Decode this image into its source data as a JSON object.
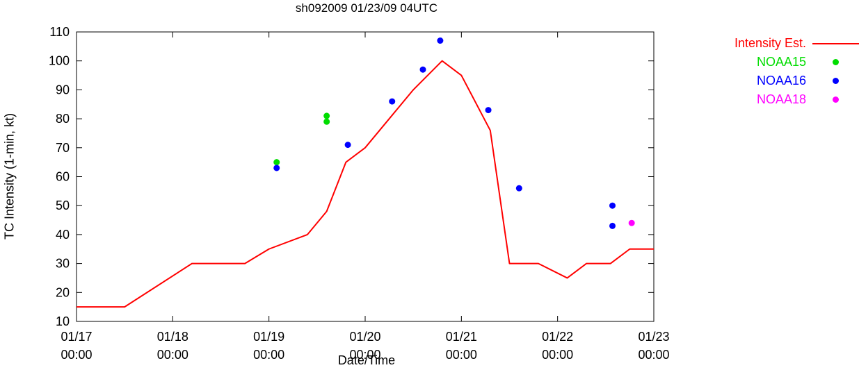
{
  "chart_data": {
    "type": "line",
    "title": "sh092009 01/23/09 04UTC",
    "xlabel": "Date/Time",
    "ylabel": "TC Intensity (1-min, kt)",
    "ylim": [
      10,
      110
    ],
    "xlim_days": [
      0,
      6
    ],
    "y_ticks": [
      10,
      20,
      30,
      40,
      50,
      60,
      70,
      80,
      90,
      100,
      110
    ],
    "x_ticks": [
      {
        "day": 0,
        "date": "01/17",
        "time": "00:00"
      },
      {
        "day": 1,
        "date": "01/18",
        "time": "00:00"
      },
      {
        "day": 2,
        "date": "01/19",
        "time": "00:00"
      },
      {
        "day": 3,
        "date": "01/20",
        "time": "00:00"
      },
      {
        "day": 4,
        "date": "01/21",
        "time": "00:00"
      },
      {
        "day": 5,
        "date": "01/22",
        "time": "00:00"
      },
      {
        "day": 6,
        "date": "01/23",
        "time": "00:00"
      }
    ],
    "series": [
      {
        "name": "Intensity Est.",
        "type": "line",
        "color": "#ff0000",
        "points": [
          [
            0,
            15
          ],
          [
            0.5,
            15
          ],
          [
            1.2,
            30
          ],
          [
            1.75,
            30
          ],
          [
            2.0,
            35
          ],
          [
            2.4,
            40
          ],
          [
            2.6,
            48
          ],
          [
            2.8,
            65
          ],
          [
            3.0,
            70
          ],
          [
            3.2,
            78
          ],
          [
            3.5,
            90
          ],
          [
            3.8,
            100
          ],
          [
            4.0,
            95
          ],
          [
            4.3,
            76
          ],
          [
            4.5,
            30
          ],
          [
            4.8,
            30
          ],
          [
            5.1,
            25
          ],
          [
            5.3,
            30
          ],
          [
            5.55,
            30
          ],
          [
            5.75,
            35
          ],
          [
            6,
            35
          ]
        ]
      },
      {
        "name": "NOAA15",
        "type": "scatter",
        "color": "#00dd00",
        "points": [
          [
            2.08,
            65
          ],
          [
            2.6,
            79
          ],
          [
            2.6,
            81
          ]
        ]
      },
      {
        "name": "NOAA16",
        "type": "scatter",
        "color": "#0000ff",
        "points": [
          [
            2.08,
            63
          ],
          [
            2.82,
            71
          ],
          [
            3.28,
            86
          ],
          [
            3.6,
            97
          ],
          [
            3.78,
            107
          ],
          [
            4.28,
            83
          ],
          [
            4.6,
            56
          ],
          [
            5.57,
            43
          ],
          [
            5.57,
            50
          ]
        ]
      },
      {
        "name": "NOAA18",
        "type": "scatter",
        "color": "#ff00ff",
        "points": [
          [
            5.77,
            44
          ]
        ]
      }
    ],
    "legend_position": "top-right",
    "axis_color": "#000000",
    "background": "#ffffff"
  }
}
